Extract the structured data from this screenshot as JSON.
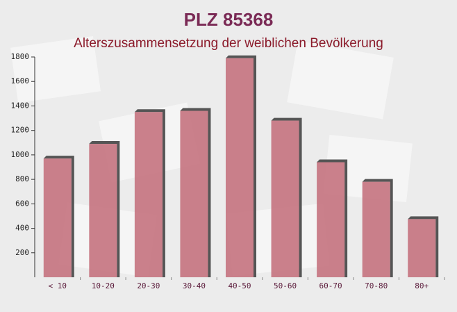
{
  "chart_data": {
    "type": "bar",
    "title": "PLZ 85368",
    "subtitle": "Alterszusammensetzung der weiblichen Bevölkerung",
    "categories": [
      "< 10",
      "10-20",
      "20-30",
      "30-40",
      "40-50",
      "50-60",
      "60-70",
      "70-80",
      "80+"
    ],
    "values": [
      970,
      1090,
      1350,
      1360,
      1790,
      1280,
      940,
      780,
      475
    ],
    "color": "#c4707c",
    "ylim": [
      0,
      1800
    ],
    "yticks": [
      200,
      400,
      600,
      800,
      1000,
      1200,
      1400,
      1600,
      1800
    ]
  }
}
